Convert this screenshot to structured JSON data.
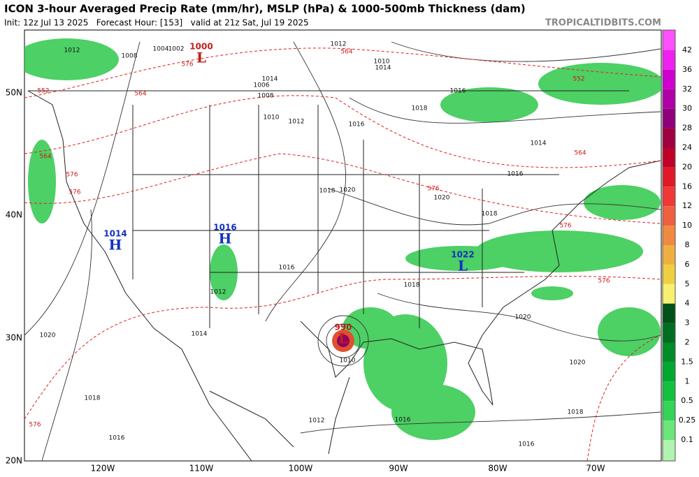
{
  "header": {
    "title": "ICON 3-hour Averaged Precip Rate (mm/hr), MSLP (hPa) & 1000-500mb Thickness (dam)",
    "subtitle": "Init: 12z Jul 13 2025   Forecast Hour: [153]   valid at 21z Sat, Jul 19 2025",
    "site": "TROPICALTIDBITS.COM"
  },
  "map": {
    "lat_labels": [
      "50N",
      "40N",
      "30N",
      "20N"
    ],
    "lon_labels": [
      "120W",
      "110W",
      "100W",
      "90W",
      "80W",
      "70W"
    ],
    "centers": [
      {
        "symbol": "L",
        "pressure": "1000"
      },
      {
        "symbol": "H",
        "pressure": "1014"
      },
      {
        "symbol": "H",
        "pressure": "1016"
      },
      {
        "symbol": "L",
        "pressure": "990"
      },
      {
        "symbol": "L",
        "pressure": "1022"
      }
    ],
    "isobar_labels": [
      "1012",
      "1008",
      "1004",
      "1002",
      "1006",
      "1008",
      "1010",
      "1012",
      "1014",
      "1016",
      "1018",
      "1016",
      "1014",
      "1012",
      "1010",
      "1018",
      "1020",
      "1020",
      "1018",
      "1016",
      "1014",
      "1016",
      "1018",
      "1020",
      "1020",
      "1018",
      "1016",
      "1010",
      "1012",
      "1016",
      "1020",
      "1018",
      "1016",
      "1014",
      "1012"
    ],
    "thickness_labels": [
      "552",
      "564",
      "576",
      "576",
      "564",
      "552",
      "564",
      "576",
      "576",
      "564",
      "576",
      "576",
      "576"
    ]
  },
  "colorbar": {
    "labels": [
      "42",
      "36",
      "32",
      "30",
      "28",
      "24",
      "20",
      "16",
      "12",
      "10",
      "8",
      "6",
      "5",
      "4",
      "3",
      "2",
      "1.5",
      "1",
      "0.5",
      "0.25",
      "0.1"
    ],
    "colors": [
      "#ff50ff",
      "#f020f0",
      "#d000d0",
      "#b000a8",
      "#90007a",
      "#a00040",
      "#c00028",
      "#e01828",
      "#f03838",
      "#f06040",
      "#f08a40",
      "#f0b040",
      "#f0d040",
      "#f8f070",
      "#00501a",
      "#006e20",
      "#008c26",
      "#00a830",
      "#14c040",
      "#34d458",
      "#6ae67a",
      "#b0f4b0"
    ]
  }
}
